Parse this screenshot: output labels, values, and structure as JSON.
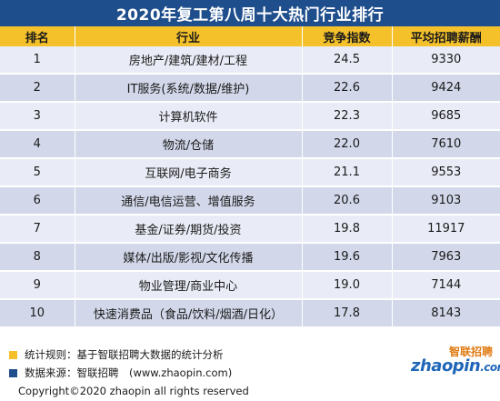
{
  "title": "2020年复工第八周十大热门行业排行",
  "table": {
    "headers": [
      "排名",
      "行业",
      "竞争指数",
      "平均招聘薪酬"
    ],
    "rows": [
      {
        "rank": "1",
        "industry": "房地产/建筑/建材/工程",
        "index": "24.5",
        "salary": "9330"
      },
      {
        "rank": "2",
        "industry": "IT服务(系统/数据/维护)",
        "index": "22.6",
        "salary": "9424"
      },
      {
        "rank": "3",
        "industry": "计算机软件",
        "index": "22.3",
        "salary": "9685"
      },
      {
        "rank": "4",
        "industry": "物流/仓储",
        "index": "22.0",
        "salary": "7610"
      },
      {
        "rank": "5",
        "industry": "互联网/电子商务",
        "index": "21.1",
        "salary": "9553"
      },
      {
        "rank": "6",
        "industry": "通信/电信运营、增值服务",
        "index": "20.6",
        "salary": "9103"
      },
      {
        "rank": "7",
        "industry": "基金/证券/期货/投资",
        "index": "19.8",
        "salary": "11917"
      },
      {
        "rank": "8",
        "industry": "媒体/出版/影视/文化传播",
        "index": "19.6",
        "salary": "7963"
      },
      {
        "rank": "9",
        "industry": "物业管理/商业中心",
        "index": "19.0",
        "salary": "7144"
      },
      {
        "rank": "10",
        "industry": "快速消费品（食品/饮料/烟酒/日化）",
        "index": "17.8",
        "salary": "8143"
      }
    ]
  },
  "footer": {
    "rule": "统计规则：基于智联招聘大数据的统计分析",
    "source": "数据来源：智联招聘　(www.zhaopin.com)",
    "copyright": "Copyright©2020 zhaopin all rights reserved"
  },
  "logo": {
    "top": "智联招聘",
    "main": "zhaopin",
    "suffix": ".com"
  },
  "colors": {
    "title_bg": "#1f4e8c",
    "header_bg": "#f5c12b",
    "row_light": "#e9ecf6",
    "row_dark": "#d2d8ea",
    "logo_orange": "#e07a10",
    "logo_blue": "#1f66b8"
  }
}
